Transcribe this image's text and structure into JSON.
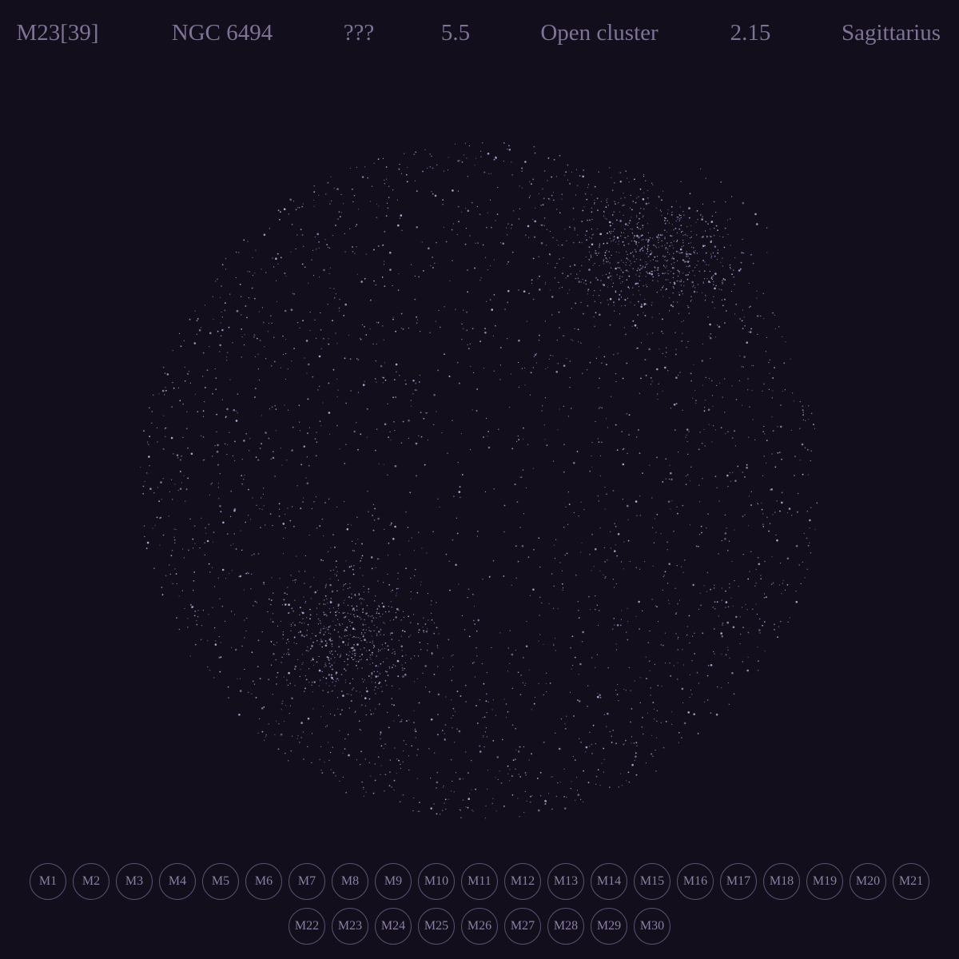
{
  "header": {
    "messier": "M23[39]",
    "ngc": "NGC 6494",
    "name": "???",
    "magnitude": "5.5",
    "type": "Open cluster",
    "distance": "2.15",
    "constellation": "Sagittarius"
  },
  "colors": {
    "background": "#130e1c",
    "text": "#7e7297",
    "star": "#b9a9dc",
    "button_border": "#5a4f70"
  },
  "nav": {
    "row1": [
      "M1",
      "M2",
      "M3",
      "M4",
      "M5",
      "M6",
      "M7",
      "M8",
      "M9",
      "M10",
      "M11",
      "M12",
      "M13",
      "M14",
      "M15",
      "M16",
      "M17",
      "M18",
      "M19",
      "M20",
      "M21"
    ],
    "row2": [
      "M22",
      "M23",
      "M24",
      "M25",
      "M26",
      "M27",
      "M28",
      "M29",
      "M30"
    ],
    "selected": "M23"
  }
}
